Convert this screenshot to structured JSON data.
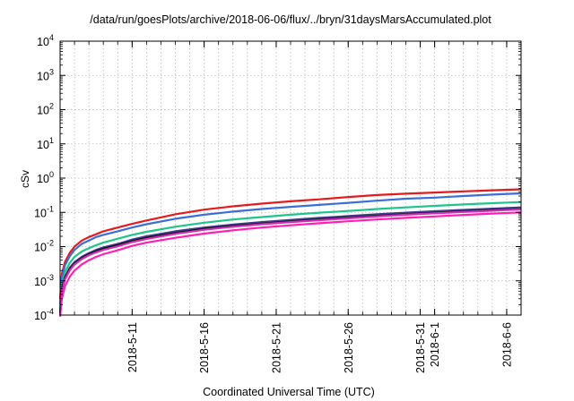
{
  "chart_data": {
    "type": "line",
    "title": "/data/run/goesPlots/archive/2018-06-06/flux/../bryn/31daysMarsAccumulated.plot",
    "xlabel": "Coordinated Universal Time (UTC)",
    "ylabel": "cSv",
    "yscale": "log",
    "ylim": [
      0.0001,
      10000
    ],
    "xlim": [
      "2018-05-06",
      "2018-06-07"
    ],
    "grid": true,
    "y_ticks": [
      {
        "value": 0.0001,
        "base": "10",
        "exp": "-4"
      },
      {
        "value": 0.001,
        "base": "10",
        "exp": "-3"
      },
      {
        "value": 0.01,
        "base": "10",
        "exp": "-2"
      },
      {
        "value": 0.1,
        "base": "10",
        "exp": "-1"
      },
      {
        "value": 1,
        "base": "10",
        "exp": "0"
      },
      {
        "value": 10,
        "base": "10",
        "exp": "1"
      },
      {
        "value": 100,
        "base": "10",
        "exp": "2"
      },
      {
        "value": 1000,
        "base": "10",
        "exp": "3"
      },
      {
        "value": 10000,
        "base": "10",
        "exp": "4"
      }
    ],
    "x_ticks": [
      {
        "date": "2018-05-11",
        "label": "2018-5-11"
      },
      {
        "date": "2018-05-16",
        "label": "2018-5-16"
      },
      {
        "date": "2018-05-21",
        "label": "2018-5-21"
      },
      {
        "date": "2018-05-26",
        "label": "2018-5-26"
      },
      {
        "date": "2018-05-31",
        "label": "2018-5-31"
      },
      {
        "date": "2018-06-01",
        "label": "2018-6-1"
      },
      {
        "date": "2018-06-06",
        "label": "2018-6-6"
      }
    ],
    "x_grid_dates": [
      "2018-05-07",
      "2018-05-08",
      "2018-05-09",
      "2018-05-10",
      "2018-05-11",
      "2018-05-12",
      "2018-05-13",
      "2018-05-14",
      "2018-05-15",
      "2018-05-16",
      "2018-05-17",
      "2018-05-18",
      "2018-05-19",
      "2018-05-20",
      "2018-05-21",
      "2018-05-22",
      "2018-05-23",
      "2018-05-24",
      "2018-05-25",
      "2018-05-26",
      "2018-05-27",
      "2018-05-28",
      "2018-05-29",
      "2018-05-30",
      "2018-05-31",
      "2018-06-01",
      "2018-06-02",
      "2018-06-03",
      "2018-06-04",
      "2018-06-05",
      "2018-06-06"
    ],
    "x": [
      "2018-05-06",
      "2018-05-06T03:00",
      "2018-05-06T08:00",
      "2018-05-06T16:00",
      "2018-05-07",
      "2018-05-07T12:00",
      "2018-05-08",
      "2018-05-08T12:00",
      "2018-05-09",
      "2018-05-10",
      "2018-05-11",
      "2018-05-12",
      "2018-05-14",
      "2018-05-16",
      "2018-05-18",
      "2018-05-20",
      "2018-05-22",
      "2018-05-24",
      "2018-05-26",
      "2018-05-28",
      "2018-05-30",
      "2018-06-01",
      "2018-06-03",
      "2018-06-05",
      "2018-06-07"
    ],
    "series": [
      {
        "color": "#e41a1c",
        "values": [
          0.0003,
          0.0016,
          0.0035,
          0.0065,
          0.01,
          0.015,
          0.019,
          0.023,
          0.028,
          0.036,
          0.046,
          0.058,
          0.088,
          0.12,
          0.15,
          0.18,
          0.21,
          0.24,
          0.28,
          0.32,
          0.35,
          0.38,
          0.41,
          0.44,
          0.47
        ]
      },
      {
        "color": "#3a6fd8",
        "values": [
          0.0002,
          0.0012,
          0.0028,
          0.0052,
          0.008,
          0.012,
          0.015,
          0.019,
          0.022,
          0.028,
          0.036,
          0.045,
          0.065,
          0.085,
          0.105,
          0.125,
          0.145,
          0.165,
          0.19,
          0.22,
          0.25,
          0.27,
          0.3,
          0.33,
          0.36
        ]
      },
      {
        "color": "#1fc48a",
        "values": [
          0.00015,
          0.0008,
          0.0018,
          0.0033,
          0.005,
          0.0072,
          0.009,
          0.011,
          0.013,
          0.017,
          0.022,
          0.027,
          0.038,
          0.05,
          0.062,
          0.073,
          0.085,
          0.098,
          0.11,
          0.125,
          0.14,
          0.155,
          0.17,
          0.185,
          0.2
        ]
      },
      {
        "color": "#3e3c8a",
        "values": [
          0.00012,
          0.0006,
          0.0013,
          0.0024,
          0.0035,
          0.005,
          0.0065,
          0.008,
          0.0095,
          0.012,
          0.016,
          0.02,
          0.028,
          0.036,
          0.044,
          0.052,
          0.06,
          0.069,
          0.078,
          0.088,
          0.098,
          0.108,
          0.118,
          0.128,
          0.14
        ]
      },
      {
        "color": "#111111",
        "values": [
          0.0001,
          0.00055,
          0.0012,
          0.0022,
          0.0032,
          0.0046,
          0.006,
          0.0073,
          0.0087,
          0.011,
          0.0145,
          0.018,
          0.025,
          0.033,
          0.04,
          0.047,
          0.054,
          0.062,
          0.07,
          0.079,
          0.088,
          0.097,
          0.106,
          0.115,
          0.125
        ]
      },
      {
        "color": "#cc2fb8",
        "values": [
          9e-05,
          0.0005,
          0.0011,
          0.002,
          0.003,
          0.0043,
          0.0056,
          0.0068,
          0.008,
          0.0102,
          0.0135,
          0.0168,
          0.0235,
          0.031,
          0.038,
          0.045,
          0.052,
          0.059,
          0.067,
          0.076,
          0.085,
          0.094,
          0.103,
          0.112,
          0.122
        ]
      },
      {
        "color": "#ff1fb4",
        "values": [
          0.0001,
          0.0003,
          0.0007,
          0.0013,
          0.002,
          0.003,
          0.004,
          0.005,
          0.006,
          0.0078,
          0.0105,
          0.013,
          0.018,
          0.024,
          0.03,
          0.036,
          0.042,
          0.048,
          0.055,
          0.062,
          0.069,
          0.076,
          0.084,
          0.092,
          0.1
        ]
      }
    ]
  }
}
